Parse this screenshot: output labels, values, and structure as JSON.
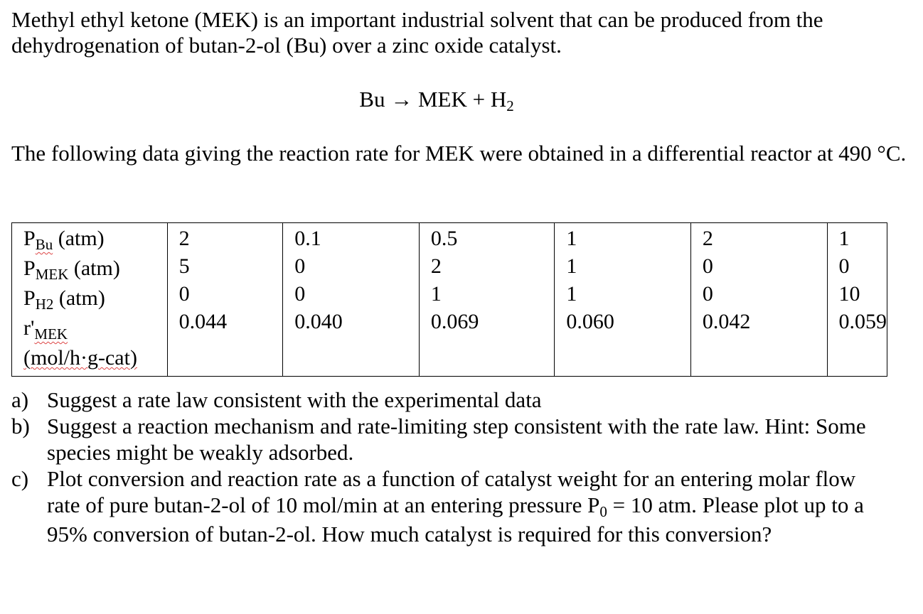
{
  "intro": "Methyl ethyl ketone (MEK) is an important industrial solvent that can be produced from the dehydrogenation of butan-2-ol (Bu) over a zinc oxide catalyst.",
  "reaction": {
    "reactant": "Bu",
    "arrow": "→",
    "product1": "MEK",
    "plus": "+",
    "product2_base": "H",
    "product2_sub": "2"
  },
  "data_intro": "The following data giving the reaction rate for MEK were obtained in a differential reactor at 490 °C.",
  "table": {
    "rows": [
      {
        "label": "P",
        "sub": "Bu",
        "unit": " (atm)",
        "values": [
          "2",
          "0.1",
          "0.5",
          "1",
          "2",
          "1"
        ]
      },
      {
        "label": "P",
        "sub": "MEK",
        "unit": " (atm)",
        "values": [
          "5",
          "0",
          "2",
          "1",
          "0",
          "0"
        ]
      },
      {
        "label": "P",
        "sub": "H2",
        "unit": " (atm)",
        "values": [
          "0",
          "0",
          "1",
          "1",
          "0",
          "10"
        ]
      },
      {
        "label": "r",
        "prime": "'",
        "sub": "MEK",
        "unit_line2": "(mol/h·g-cat)",
        "values": [
          "0.044",
          "0.040",
          "0.069",
          "0.060",
          "0.042",
          "0.059"
        ]
      }
    ]
  },
  "questions": [
    {
      "label": "a)",
      "text": "Suggest a rate law consistent with the experimental data"
    },
    {
      "label": "b)",
      "text": "Suggest a reaction mechanism and rate-limiting step consistent with the rate law.  Hint: Some species might be weakly adsorbed."
    },
    {
      "label": "c)",
      "text_before": "Plot conversion and reaction rate as a function of catalyst weight for an entering molar flow rate of pure butan-2-ol of 10 mol/min at an entering pressure P",
      "sub": "0",
      "text_after": " = 10 atm.  Please plot up to a 95% conversion of butan-2-ol.  How much catalyst is required for this conversion?"
    }
  ]
}
